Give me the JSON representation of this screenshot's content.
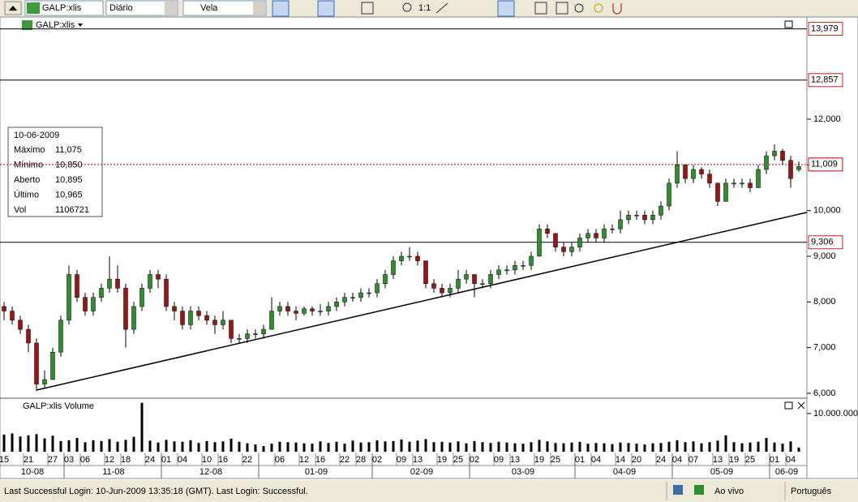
{
  "toolbar": {
    "symbol": "GALP:xlis",
    "period": "Diário",
    "style": "Vela",
    "zoom": "1:1"
  },
  "status_bar": {
    "message": "Last Successful Login: 10-Jun-2009 13:35:18 (GMT). Last Login: Successful.",
    "mode": "Ao vivo",
    "language": "Português"
  },
  "info_box": {
    "date": "10-06-2009",
    "rows": [
      [
        "Máximo",
        "11,075"
      ],
      [
        "Mínimo",
        "10,850"
      ],
      [
        "Aberto",
        "10,895"
      ],
      [
        "Último",
        "10,965"
      ],
      [
        "Vol",
        "1106721"
      ]
    ]
  },
  "chart_data": [
    {
      "type": "candlestick",
      "title": "GALP:xlis",
      "up_color": "#2f8f2f",
      "down_color": "#9c1414",
      "ylim": [
        5.91,
        14.22
      ],
      "yticks": [
        {
          "value": 6,
          "label": "6,000"
        },
        {
          "value": 7,
          "label": "7,000"
        },
        {
          "value": 8,
          "label": "8,000"
        },
        {
          "value": 9,
          "label": "9,000"
        },
        {
          "value": 10,
          "label": "10,000"
        },
        {
          "value": 11,
          "label": "11,000"
        },
        {
          "value": 12,
          "label": "12,000"
        }
      ],
      "categories": [
        "15",
        null,
        null,
        "21",
        null,
        null,
        "27",
        null,
        "03",
        null,
        "06",
        null,
        null,
        "12",
        null,
        "18",
        null,
        null,
        "24",
        null,
        "01",
        null,
        "04",
        null,
        null,
        "10",
        null,
        "16",
        null,
        null,
        "22",
        null,
        null,
        null,
        "06",
        null,
        null,
        "12",
        null,
        "16",
        null,
        null,
        "22",
        null,
        "28",
        null,
        "02",
        null,
        null,
        "09",
        null,
        "13",
        null,
        null,
        "19",
        null,
        "25",
        null,
        "02",
        null,
        null,
        "09",
        null,
        "13",
        null,
        null,
        "19",
        null,
        "25",
        null,
        null,
        "01",
        null,
        "04",
        null,
        null,
        "14",
        null,
        "20",
        null,
        null,
        "24",
        null,
        "04",
        null,
        "07",
        null,
        null,
        "13",
        null,
        "19",
        null,
        "25",
        null,
        null,
        "01",
        null,
        "04",
        null
      ],
      "months": [
        "10-08",
        null,
        null,
        null,
        null,
        null,
        null,
        null,
        "11-08",
        null,
        null,
        null,
        null,
        null,
        null,
        null,
        null,
        null,
        null,
        null,
        "12-08",
        null,
        null,
        null,
        null,
        null,
        null,
        null,
        null,
        null,
        null,
        null,
        "01-09",
        null,
        null,
        null,
        null,
        null,
        null,
        null,
        null,
        null,
        null,
        null,
        null,
        null,
        "02-09",
        null,
        null,
        null,
        null,
        null,
        null,
        null,
        null,
        null,
        null,
        null,
        "03-09",
        null,
        null,
        null,
        null,
        null,
        null,
        null,
        null,
        null,
        null,
        null,
        null,
        "04-09",
        null,
        null,
        null,
        null,
        null,
        null,
        null,
        null,
        null,
        null,
        null,
        "05-09",
        null,
        null,
        null,
        null,
        null,
        null,
        null,
        null,
        null,
        null,
        null,
        "06-09",
        null,
        null,
        null
      ],
      "ohlc": [
        [
          7.9,
          8.0,
          7.6,
          7.8
        ],
        [
          7.8,
          7.9,
          7.5,
          7.6
        ],
        [
          7.6,
          7.7,
          7.3,
          7.4
        ],
        [
          7.4,
          7.5,
          6.9,
          7.1
        ],
        [
          7.1,
          7.2,
          6.05,
          6.2
        ],
        [
          6.2,
          6.5,
          6.1,
          6.3
        ],
        [
          6.3,
          7.0,
          6.3,
          6.9
        ],
        [
          6.9,
          7.7,
          6.8,
          7.6
        ],
        [
          7.6,
          8.8,
          7.5,
          8.6
        ],
        [
          8.6,
          8.7,
          8.0,
          8.1
        ],
        [
          8.1,
          8.2,
          7.7,
          7.8
        ],
        [
          7.8,
          8.2,
          7.7,
          8.1
        ],
        [
          8.1,
          8.4,
          8.0,
          8.3
        ],
        [
          8.3,
          9.0,
          8.2,
          8.5
        ],
        [
          8.5,
          8.8,
          8.2,
          8.3
        ],
        [
          8.3,
          8.4,
          7.0,
          7.4
        ],
        [
          7.4,
          8.0,
          7.3,
          7.9
        ],
        [
          7.9,
          8.4,
          7.8,
          8.3
        ],
        [
          8.3,
          8.7,
          8.2,
          8.6
        ],
        [
          8.6,
          8.7,
          8.3,
          8.5
        ],
        [
          8.5,
          8.6,
          7.8,
          7.9
        ],
        [
          7.9,
          8.0,
          7.6,
          7.8
        ],
        [
          7.8,
          7.9,
          7.4,
          7.5
        ],
        [
          7.5,
          7.9,
          7.4,
          7.8
        ],
        [
          7.8,
          7.9,
          7.6,
          7.7
        ],
        [
          7.7,
          7.8,
          7.5,
          7.6
        ],
        [
          7.6,
          7.7,
          7.3,
          7.5
        ],
        [
          7.5,
          7.8,
          7.4,
          7.6
        ],
        [
          7.6,
          7.6,
          7.1,
          7.2
        ],
        [
          7.2,
          7.3,
          7.1,
          7.2
        ],
        [
          7.2,
          7.4,
          7.1,
          7.3
        ],
        [
          7.3,
          7.4,
          7.2,
          7.3
        ],
        [
          7.3,
          7.5,
          7.2,
          7.4
        ],
        [
          7.4,
          8.1,
          7.4,
          7.8
        ],
        [
          7.8,
          8.0,
          7.7,
          7.9
        ],
        [
          7.9,
          8.0,
          7.7,
          7.8
        ],
        [
          7.8,
          7.9,
          7.6,
          7.75
        ],
        [
          7.75,
          7.9,
          7.7,
          7.85
        ],
        [
          7.85,
          7.9,
          7.7,
          7.8
        ],
        [
          7.8,
          7.95,
          7.7,
          7.8
        ],
        [
          7.8,
          8.0,
          7.7,
          7.9
        ],
        [
          7.9,
          8.1,
          7.8,
          8.0
        ],
        [
          8.0,
          8.2,
          7.9,
          8.1
        ],
        [
          8.1,
          8.2,
          8.0,
          8.1
        ],
        [
          8.1,
          8.3,
          8.0,
          8.2
        ],
        [
          8.2,
          8.3,
          8.1,
          8.2
        ],
        [
          8.2,
          8.5,
          8.1,
          8.4
        ],
        [
          8.4,
          8.7,
          8.3,
          8.6
        ],
        [
          8.6,
          9.0,
          8.5,
          8.9
        ],
        [
          8.9,
          9.1,
          8.8,
          9.0
        ],
        [
          9.0,
          9.2,
          8.9,
          9.0
        ],
        [
          9.0,
          9.1,
          8.8,
          8.9
        ],
        [
          8.9,
          8.9,
          8.3,
          8.4
        ],
        [
          8.4,
          8.5,
          8.2,
          8.3
        ],
        [
          8.3,
          8.4,
          8.1,
          8.2
        ],
        [
          8.2,
          8.4,
          8.1,
          8.3
        ],
        [
          8.3,
          8.7,
          8.2,
          8.5
        ],
        [
          8.5,
          8.7,
          8.4,
          8.6
        ],
        [
          8.6,
          8.6,
          8.1,
          8.4
        ],
        [
          8.4,
          8.5,
          8.3,
          8.4
        ],
        [
          8.4,
          8.7,
          8.3,
          8.6
        ],
        [
          8.6,
          8.8,
          8.5,
          8.7
        ],
        [
          8.7,
          8.8,
          8.6,
          8.7
        ],
        [
          8.7,
          8.9,
          8.6,
          8.8
        ],
        [
          8.8,
          8.9,
          8.7,
          8.8
        ],
        [
          8.8,
          9.1,
          8.7,
          9.0
        ],
        [
          9.0,
          9.7,
          9.0,
          9.6
        ],
        [
          9.6,
          9.7,
          9.4,
          9.5
        ],
        [
          9.5,
          9.5,
          9.1,
          9.2
        ],
        [
          9.2,
          9.3,
          9.0,
          9.1
        ],
        [
          9.1,
          9.3,
          9.0,
          9.2
        ],
        [
          9.2,
          9.5,
          9.1,
          9.4
        ],
        [
          9.4,
          9.6,
          9.3,
          9.5
        ],
        [
          9.5,
          9.6,
          9.3,
          9.4
        ],
        [
          9.4,
          9.7,
          9.3,
          9.6
        ],
        [
          9.6,
          9.7,
          9.5,
          9.6
        ],
        [
          9.6,
          10.0,
          9.5,
          9.8
        ],
        [
          9.8,
          10.0,
          9.7,
          9.9
        ],
        [
          9.9,
          10.0,
          9.8,
          9.9
        ],
        [
          9.9,
          10.0,
          9.7,
          9.8
        ],
        [
          9.8,
          10.0,
          9.7,
          9.9
        ],
        [
          9.9,
          10.2,
          9.8,
          10.1
        ],
        [
          10.1,
          10.7,
          10.0,
          10.6
        ],
        [
          10.6,
          11.3,
          10.5,
          11.0
        ],
        [
          11.0,
          11.0,
          10.6,
          10.7
        ],
        [
          10.7,
          11.0,
          10.6,
          10.9
        ],
        [
          10.9,
          10.95,
          10.7,
          10.8
        ],
        [
          10.8,
          10.9,
          10.5,
          10.6
        ],
        [
          10.6,
          10.6,
          10.1,
          10.2
        ],
        [
          10.2,
          10.7,
          10.2,
          10.6
        ],
        [
          10.6,
          10.7,
          10.5,
          10.6
        ],
        [
          10.6,
          10.7,
          10.5,
          10.6
        ],
        [
          10.6,
          10.7,
          10.4,
          10.5
        ],
        [
          10.5,
          11.0,
          10.5,
          10.9
        ],
        [
          10.9,
          11.3,
          10.8,
          11.2
        ],
        [
          11.2,
          11.45,
          11.1,
          11.3
        ],
        [
          11.3,
          11.35,
          11.0,
          11.1
        ],
        [
          11.1,
          11.2,
          10.5,
          10.7
        ],
        [
          10.895,
          11.075,
          10.85,
          10.965
        ]
      ],
      "hlines": [
        {
          "value": 13.979,
          "label": "13,979"
        },
        {
          "value": 12.857,
          "label": "12,857"
        },
        {
          "value": 9.306,
          "label": "9,306"
        }
      ],
      "last_price": {
        "value": 11.009,
        "label": "11,009",
        "color": "#cc0000"
      },
      "trendline": {
        "start": [
          4,
          6.07
        ],
        "end": [
          99,
          9.96
        ]
      }
    },
    {
      "type": "bar",
      "title": "GALP:xlis Volume",
      "color": "#000000",
      "ylim": [
        0,
        13800000
      ],
      "yticks": [
        {
          "value": 10000000,
          "label": "10.000.000"
        }
      ],
      "values": [
        4500000,
        4800000,
        4000000,
        4300000,
        4600000,
        3500000,
        4200000,
        2800000,
        3000000,
        3600000,
        2500000,
        3000000,
        2800000,
        3300000,
        2600000,
        3100000,
        3900000,
        12800000,
        2900000,
        2400000,
        3100000,
        2700000,
        2600000,
        3000000,
        2300000,
        2800000,
        2500000,
        2700000,
        3400000,
        2600000,
        2200000,
        1900000,
        1500000,
        2100000,
        2600000,
        2500000,
        2400000,
        2200000,
        2100000,
        2700000,
        2300000,
        2600000,
        2100000,
        2900000,
        2400000,
        2500000,
        3000000,
        2700000,
        2800000,
        3200000,
        2600000,
        2900000,
        3300000,
        2500000,
        2600000,
        2400000,
        2700000,
        2200000,
        2800000,
        2500000,
        2300000,
        2600000,
        2400000,
        2200000,
        2100000,
        2500000,
        3100000,
        2700000,
        2300000,
        2200000,
        2400000,
        2600000,
        2100000,
        2300000,
        2200000,
        2000000,
        2400000,
        2300000,
        2100000,
        1900000,
        2200000,
        2300000,
        2600000,
        3000000,
        2500000,
        2700000,
        2200000,
        2500000,
        2900000,
        4300000,
        2500000,
        2200000,
        2400000,
        2600000,
        3600000,
        2400000,
        2100000,
        2700000,
        1106721
      ]
    }
  ]
}
